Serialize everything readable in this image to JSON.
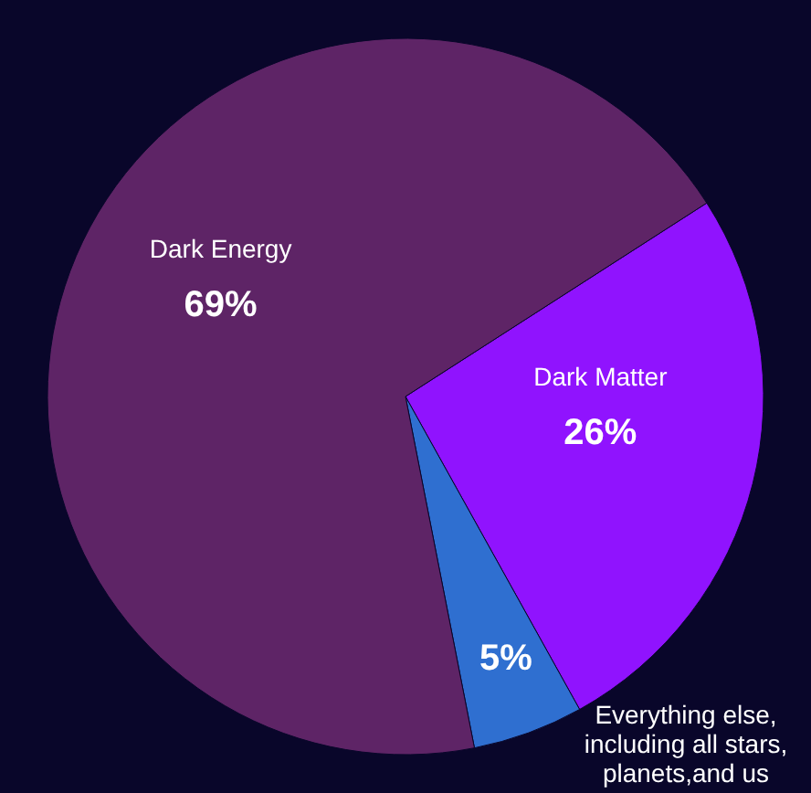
{
  "chart_data": {
    "type": "pie",
    "categories": [
      "Dark Matter",
      "Everything else, including all stars, planets,and us",
      "Dark Energy"
    ],
    "values": [
      26,
      5,
      69
    ],
    "colors": [
      "#9013fe",
      "#2f6fd0",
      "#5e2466"
    ],
    "value_labels": [
      "26%",
      "5%",
      "69%"
    ]
  }
}
